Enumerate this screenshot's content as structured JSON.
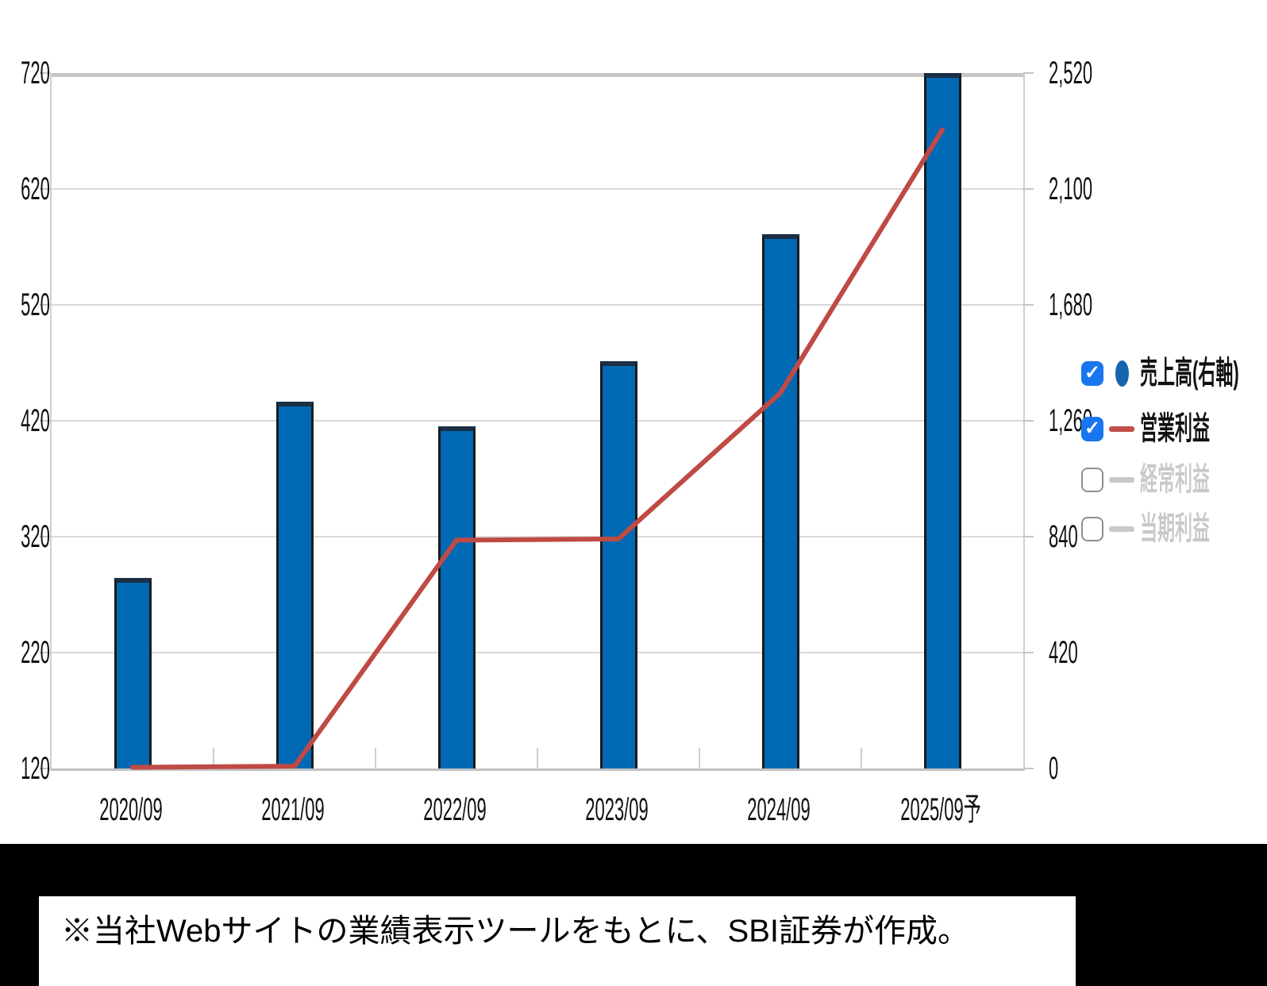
{
  "chart_data": {
    "type": "bar",
    "subtype": "combo-bar-line",
    "categories": [
      "2020/09",
      "2021/09",
      "2022/09",
      "2023/09",
      "2024/09",
      "2025/09予"
    ],
    "series": [
      {
        "name": "売上高(右軸)",
        "type": "bar",
        "axis": "right",
        "color": "#0069b4",
        "visible": true,
        "values": [
          690,
          1330,
          1240,
          1475,
          1935,
          2520
        ]
      },
      {
        "name": "営業利益",
        "type": "line",
        "axis": "left",
        "color": "#bf4a44",
        "visible": true,
        "values": [
          121,
          122,
          317,
          318,
          444,
          671
        ]
      },
      {
        "name": "経常利益",
        "type": "line",
        "axis": "left",
        "color": "#c9c9c9",
        "visible": false,
        "values": []
      },
      {
        "name": "当期利益",
        "type": "line",
        "axis": "left",
        "color": "#c9c9c9",
        "visible": false,
        "values": []
      }
    ],
    "left_axis": {
      "min": 120,
      "max": 720,
      "ticks": [
        120,
        220,
        320,
        420,
        520,
        620,
        720
      ],
      "tick_labels": [
        "120",
        "220",
        "320",
        "420",
        "520",
        "620",
        "720"
      ]
    },
    "right_axis": {
      "min": 0,
      "max": 2520,
      "ticks": [
        0,
        420,
        840,
        1260,
        1680,
        2100,
        2520
      ],
      "tick_labels": [
        "0",
        "420",
        "840",
        "1,260",
        "1,680",
        "2,100",
        "2,520"
      ]
    },
    "grid": true,
    "legend_position": "right",
    "title": "",
    "xlabel": "",
    "ylabel": ""
  },
  "legend": {
    "items": [
      {
        "label": "売上高(右軸)",
        "checked": true,
        "marker": "circle",
        "marker_color": "#1465ab",
        "text_color": "#111111"
      },
      {
        "label": "営業利益",
        "checked": true,
        "marker": "line",
        "marker_color": "#c0504a",
        "text_color": "#111111"
      },
      {
        "label": "経常利益",
        "checked": false,
        "marker": "line",
        "marker_color": "#c9c9c9",
        "text_color": "#c9c9c9"
      },
      {
        "label": "当期利益",
        "checked": false,
        "marker": "line",
        "marker_color": "#c9c9c9",
        "text_color": "#c9c9c9"
      }
    ],
    "checkbox_color": "#1877f0",
    "check_glyph": "✓"
  },
  "note": {
    "text": "※当社Webサイトの業績表示ツールをもとに、SBI証券が作成。"
  },
  "colors": {
    "bar_fill": "#0069b4",
    "line_stroke": "#bf4a44",
    "gridline": "#d9d9d9",
    "axis_line": "#c6c6c6",
    "disabled_gray": "#c9c9c9",
    "checkbox_blue": "#1877f0",
    "band_background": "#000000",
    "note_background": "#ffffff"
  }
}
